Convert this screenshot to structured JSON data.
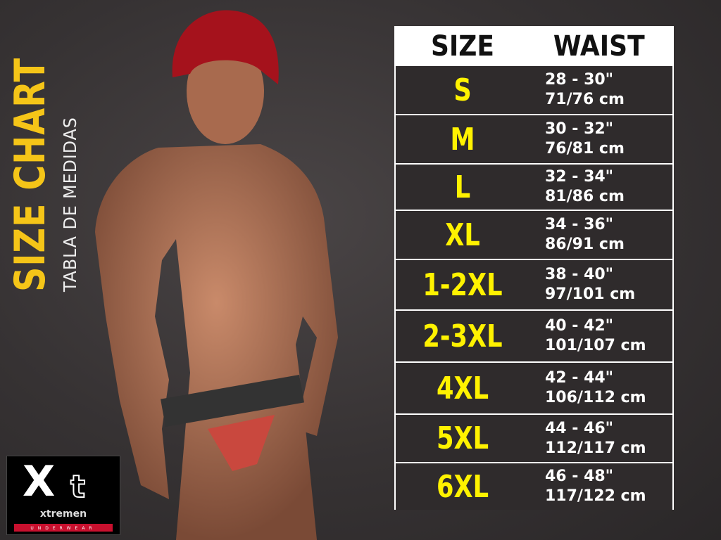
{
  "title": "SIZE CHART",
  "subtitle": "TABLA DE MEDIDAS",
  "table": {
    "headers": [
      "SIZE",
      "WAIST"
    ],
    "rows": [
      {
        "size": "S",
        "inches": "28 - 30\"",
        "cm": "71/76 cm"
      },
      {
        "size": "M",
        "inches": "30 - 32\"",
        "cm": "76/81 cm"
      },
      {
        "size": "L",
        "inches": "32 - 34\"",
        "cm": "81/86 cm"
      },
      {
        "size": "XL",
        "inches": "34 - 36\"",
        "cm": "86/91 cm"
      },
      {
        "size": "1-2XL",
        "inches": "38 - 40\"",
        "cm": "97/101 cm"
      },
      {
        "size": "2-3XL",
        "inches": "40 - 42\"",
        "cm": "101/107 cm"
      },
      {
        "size": "4XL",
        "inches": "42 - 44\"",
        "cm": "106/112 cm"
      },
      {
        "size": "5XL",
        "inches": "44 - 46\"",
        "cm": "112/117 cm"
      },
      {
        "size": "6XL",
        "inches": "46 - 48\"",
        "cm": "117/122 cm"
      }
    ]
  },
  "logo": {
    "mark": "Xt",
    "brand": "xtremen",
    "tagline": "UNDERWEAR"
  },
  "colors": {
    "accent": "#f5c518",
    "size_text": "#fff200",
    "row_bg": "#2f2b2c",
    "logo_red": "#c8102e"
  }
}
